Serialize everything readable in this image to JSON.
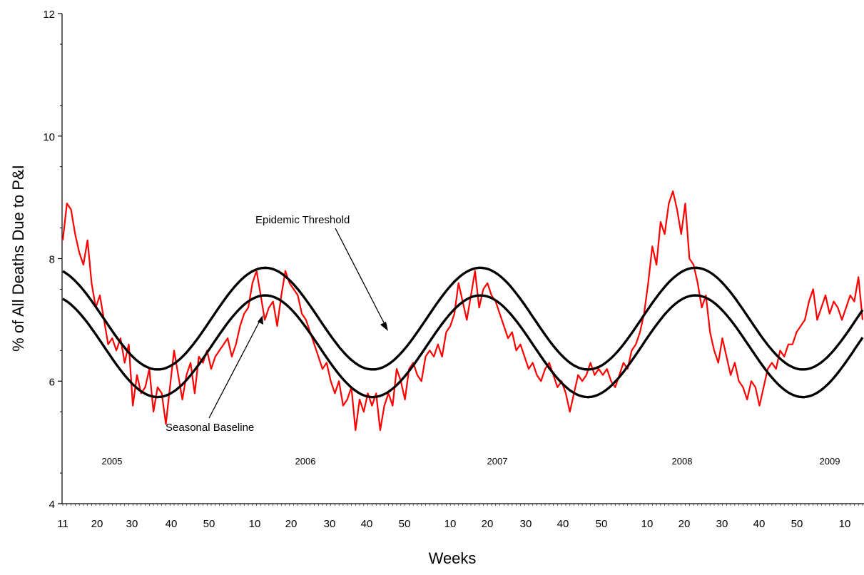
{
  "chart_data": {
    "type": "line",
    "title": "",
    "xlabel": "Weeks",
    "ylabel": "% of All Deaths Due to P&I",
    "ylim": [
      4,
      12
    ],
    "yticks": [
      "4",
      "6",
      "8",
      "10",
      "12"
    ],
    "xtick_labels": [
      "11",
      "20",
      "30",
      "40",
      "50",
      "10",
      "20",
      "30",
      "40",
      "50",
      "10",
      "20",
      "30",
      "40",
      "50",
      "10",
      "20",
      "30",
      "40",
      "50",
      "10"
    ],
    "year_labels": [
      "2005",
      "2006",
      "2007",
      "2008",
      "2009"
    ],
    "annotations": [
      "Epidemic Threshold",
      "Seasonal Baseline"
    ],
    "grid": false,
    "legend": "none",
    "x_description": "MMWR week, 2005 week 11 through 2009 week 14",
    "series": [
      {
        "color": "#ff0000",
        "description": "Observed weekly percentage of deaths due to pneumonia and influenza",
        "points": [
          [
            11,
            8.3
          ],
          [
            12,
            8.9
          ],
          [
            13,
            8.8
          ],
          [
            14,
            8.4
          ],
          [
            15,
            8.1
          ],
          [
            16,
            7.9
          ],
          [
            17,
            8.3
          ],
          [
            18,
            7.6
          ],
          [
            19,
            7.2
          ],
          [
            20,
            7.4
          ],
          [
            21,
            7.0
          ],
          [
            22,
            6.6
          ],
          [
            23,
            6.7
          ],
          [
            24,
            6.5
          ],
          [
            25,
            6.7
          ],
          [
            26,
            6.3
          ],
          [
            27,
            6.6
          ],
          [
            28,
            5.6
          ],
          [
            29,
            6.1
          ],
          [
            30,
            5.8
          ],
          [
            31,
            5.9
          ],
          [
            32,
            6.2
          ],
          [
            33,
            5.5
          ],
          [
            34,
            5.9
          ],
          [
            35,
            5.8
          ],
          [
            36,
            5.3
          ],
          [
            37,
            5.9
          ],
          [
            38,
            6.5
          ],
          [
            39,
            6.1
          ],
          [
            40,
            5.7
          ],
          [
            41,
            6.1
          ],
          [
            42,
            6.3
          ],
          [
            43,
            5.8
          ],
          [
            44,
            6.4
          ],
          [
            45,
            6.3
          ],
          [
            46,
            6.5
          ],
          [
            47,
            6.2
          ],
          [
            48,
            6.4
          ],
          [
            49,
            6.5
          ],
          [
            50,
            6.6
          ],
          [
            51,
            6.7
          ],
          [
            52,
            6.4
          ],
          [
            53,
            6.6
          ],
          [
            54,
            6.9
          ],
          [
            55,
            7.1
          ],
          [
            56,
            7.2
          ],
          [
            57,
            7.6
          ],
          [
            58,
            7.8
          ],
          [
            59,
            7.4
          ],
          [
            60,
            7.0
          ],
          [
            61,
            7.2
          ],
          [
            62,
            7.3
          ],
          [
            63,
            6.9
          ],
          [
            64,
            7.4
          ],
          [
            65,
            7.8
          ],
          [
            66,
            7.6
          ],
          [
            67,
            7.5
          ],
          [
            68,
            7.4
          ],
          [
            69,
            7.1
          ],
          [
            70,
            7.0
          ],
          [
            71,
            6.8
          ],
          [
            72,
            6.6
          ],
          [
            73,
            6.4
          ],
          [
            74,
            6.2
          ],
          [
            75,
            6.3
          ],
          [
            76,
            6.0
          ],
          [
            77,
            5.8
          ],
          [
            78,
            6.0
          ],
          [
            79,
            5.6
          ],
          [
            80,
            5.7
          ],
          [
            81,
            5.9
          ],
          [
            82,
            5.2
          ],
          [
            83,
            5.7
          ],
          [
            84,
            5.5
          ],
          [
            85,
            5.8
          ],
          [
            86,
            5.6
          ],
          [
            87,
            5.8
          ],
          [
            88,
            5.2
          ],
          [
            89,
            5.6
          ],
          [
            90,
            5.8
          ],
          [
            91,
            5.6
          ],
          [
            92,
            6.2
          ],
          [
            93,
            6.0
          ],
          [
            94,
            5.7
          ],
          [
            95,
            6.2
          ],
          [
            96,
            6.3
          ],
          [
            97,
            6.1
          ],
          [
            98,
            6.0
          ],
          [
            99,
            6.4
          ],
          [
            100,
            6.5
          ],
          [
            101,
            6.4
          ],
          [
            102,
            6.6
          ],
          [
            103,
            6.4
          ],
          [
            104,
            6.8
          ],
          [
            105,
            6.9
          ],
          [
            106,
            7.1
          ],
          [
            107,
            7.6
          ],
          [
            108,
            7.3
          ],
          [
            109,
            7.0
          ],
          [
            110,
            7.4
          ],
          [
            111,
            7.8
          ],
          [
            112,
            7.2
          ],
          [
            113,
            7.5
          ],
          [
            114,
            7.6
          ],
          [
            115,
            7.4
          ],
          [
            116,
            7.3
          ],
          [
            117,
            7.1
          ],
          [
            118,
            6.9
          ],
          [
            119,
            6.7
          ],
          [
            120,
            6.8
          ],
          [
            121,
            6.5
          ],
          [
            122,
            6.6
          ],
          [
            123,
            6.4
          ],
          [
            124,
            6.2
          ],
          [
            125,
            6.3
          ],
          [
            126,
            6.1
          ],
          [
            127,
            6.0
          ],
          [
            128,
            6.2
          ],
          [
            129,
            6.3
          ],
          [
            130,
            6.1
          ],
          [
            131,
            5.9
          ],
          [
            132,
            6.0
          ],
          [
            133,
            5.8
          ],
          [
            134,
            5.5
          ],
          [
            135,
            5.8
          ],
          [
            136,
            6.1
          ],
          [
            137,
            6.0
          ],
          [
            138,
            6.1
          ],
          [
            139,
            6.3
          ],
          [
            140,
            6.1
          ],
          [
            141,
            6.2
          ],
          [
            142,
            6.1
          ],
          [
            143,
            6.2
          ],
          [
            144,
            6.0
          ],
          [
            145,
            5.9
          ],
          [
            146,
            6.1
          ],
          [
            147,
            6.3
          ],
          [
            148,
            6.2
          ],
          [
            149,
            6.5
          ],
          [
            150,
            6.6
          ],
          [
            151,
            6.8
          ],
          [
            152,
            7.1
          ],
          [
            153,
            7.6
          ],
          [
            154,
            8.2
          ],
          [
            155,
            7.9
          ],
          [
            156,
            8.6
          ],
          [
            157,
            8.4
          ],
          [
            158,
            8.9
          ],
          [
            159,
            9.1
          ],
          [
            160,
            8.8
          ],
          [
            161,
            8.4
          ],
          [
            162,
            8.9
          ],
          [
            163,
            8.0
          ],
          [
            164,
            7.9
          ],
          [
            165,
            7.6
          ],
          [
            166,
            7.2
          ],
          [
            167,
            7.4
          ],
          [
            168,
            6.8
          ],
          [
            169,
            6.5
          ],
          [
            170,
            6.3
          ],
          [
            171,
            6.7
          ],
          [
            172,
            6.4
          ],
          [
            173,
            6.1
          ],
          [
            174,
            6.3
          ],
          [
            175,
            6.0
          ],
          [
            176,
            5.9
          ],
          [
            177,
            5.7
          ],
          [
            178,
            6.0
          ],
          [
            179,
            5.9
          ],
          [
            180,
            5.6
          ],
          [
            181,
            5.9
          ],
          [
            182,
            6.2
          ],
          [
            183,
            6.3
          ],
          [
            184,
            6.2
          ],
          [
            185,
            6.5
          ],
          [
            186,
            6.4
          ],
          [
            187,
            6.6
          ],
          [
            188,
            6.6
          ],
          [
            189,
            6.8
          ],
          [
            190,
            6.9
          ],
          [
            191,
            7.0
          ],
          [
            192,
            7.3
          ],
          [
            193,
            7.5
          ],
          [
            194,
            7.0
          ],
          [
            195,
            7.2
          ],
          [
            196,
            7.4
          ],
          [
            197,
            7.1
          ],
          [
            198,
            7.3
          ],
          [
            199,
            7.2
          ],
          [
            200,
            7.0
          ],
          [
            201,
            7.2
          ],
          [
            202,
            7.4
          ],
          [
            203,
            7.3
          ],
          [
            204,
            7.7
          ],
          [
            205,
            7.0
          ]
        ]
      },
      {
        "color": "#000000",
        "description": "Epidemic Threshold",
        "curve": {
          "mean": 7.02,
          "amplitude": 0.83,
          "trough_week": 34,
          "period": 52.18,
          "start": 11,
          "end": 205
        }
      },
      {
        "color": "#000000",
        "description": "Seasonal Baseline",
        "curve": {
          "mean": 6.57,
          "amplitude": 0.83,
          "trough_week": 34,
          "period": 52.18,
          "start": 11,
          "end": 205
        }
      }
    ]
  }
}
